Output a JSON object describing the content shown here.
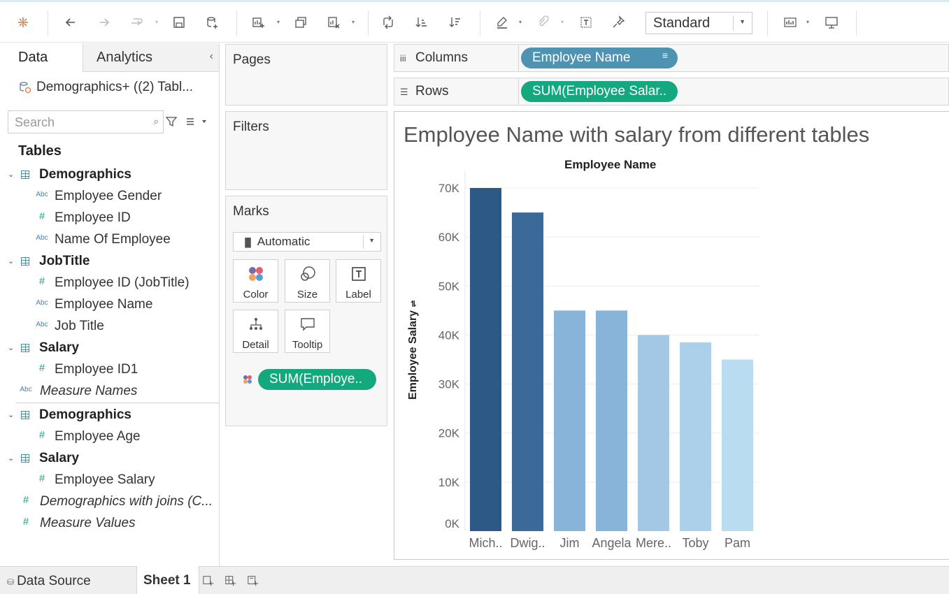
{
  "toolbar": {
    "view_size": "Standard"
  },
  "data_pane": {
    "tab_data": "Data",
    "tab_analytics": "Analytics",
    "datasource": "Demographics+ ((2) Tabl...",
    "search_placeholder": "Search",
    "tables_heading": "Tables",
    "groups": [
      {
        "name": "Demographics",
        "fields": [
          {
            "type": "Abc",
            "label": "Employee Gender"
          },
          {
            "type": "#",
            "label": "Employee ID"
          },
          {
            "type": "Abc",
            "label": "Name Of Employee"
          }
        ]
      },
      {
        "name": "JobTitle",
        "fields": [
          {
            "type": "#",
            "label": "Employee ID (JobTitle)"
          },
          {
            "type": "Abc",
            "label": "Employee Name"
          },
          {
            "type": "Abc",
            "label": "Job Title"
          }
        ]
      },
      {
        "name": "Salary",
        "fields": [
          {
            "type": "#",
            "label": "Employee ID1"
          }
        ]
      },
      {
        "name": "Demographics",
        "fields": [
          {
            "type": "#",
            "label": "Employee Age"
          }
        ]
      },
      {
        "name": "Salary",
        "fields": [
          {
            "type": "#",
            "label": "Employee Salary"
          }
        ]
      }
    ],
    "measure_names": {
      "type": "Abc",
      "label": "Measure Names"
    },
    "demographics_joins": {
      "type": "#",
      "label": "Demographics with joins (C..."
    },
    "measure_values": {
      "type": "#",
      "label": "Measure Values"
    }
  },
  "cards": {
    "pages": "Pages",
    "filters": "Filters",
    "marks": "Marks",
    "marks_type": "Automatic",
    "buttons": {
      "color": "Color",
      "size": "Size",
      "label": "Label",
      "detail": "Detail",
      "tooltip": "Tooltip"
    },
    "color_pill": "SUM(Employe.."
  },
  "shelves": {
    "columns_label": "Columns",
    "columns_pill": "Employee Name",
    "rows_label": "Rows",
    "rows_pill": "SUM(Employee Salar.."
  },
  "viz": {
    "title": "Employee Name with salary from different tables"
  },
  "bottom": {
    "data_source": "Data Source",
    "sheet": "Sheet 1"
  },
  "colors": {
    "green_pill": "#13a87d",
    "blue_pill": "#4f93b3"
  },
  "chart_data": {
    "type": "bar",
    "xlabel": "Employee Name",
    "ylabel": "Employee Salary",
    "categories": [
      "Mich..",
      "Dwig..",
      "Jim",
      "Angela",
      "Mere..",
      "Toby",
      "Pam"
    ],
    "values": [
      70000,
      65000,
      45000,
      45000,
      40000,
      38500,
      35000
    ],
    "bar_colors": [
      "#2c5985",
      "#3b6a99",
      "#89b4d9",
      "#89b4d9",
      "#a2c8e6",
      "#acd0ea",
      "#b9dcf0"
    ],
    "ylim": [
      0,
      70000
    ],
    "yticks": [
      "0K",
      "10K",
      "20K",
      "30K",
      "40K",
      "50K",
      "60K",
      "70K"
    ],
    "grid": true
  }
}
